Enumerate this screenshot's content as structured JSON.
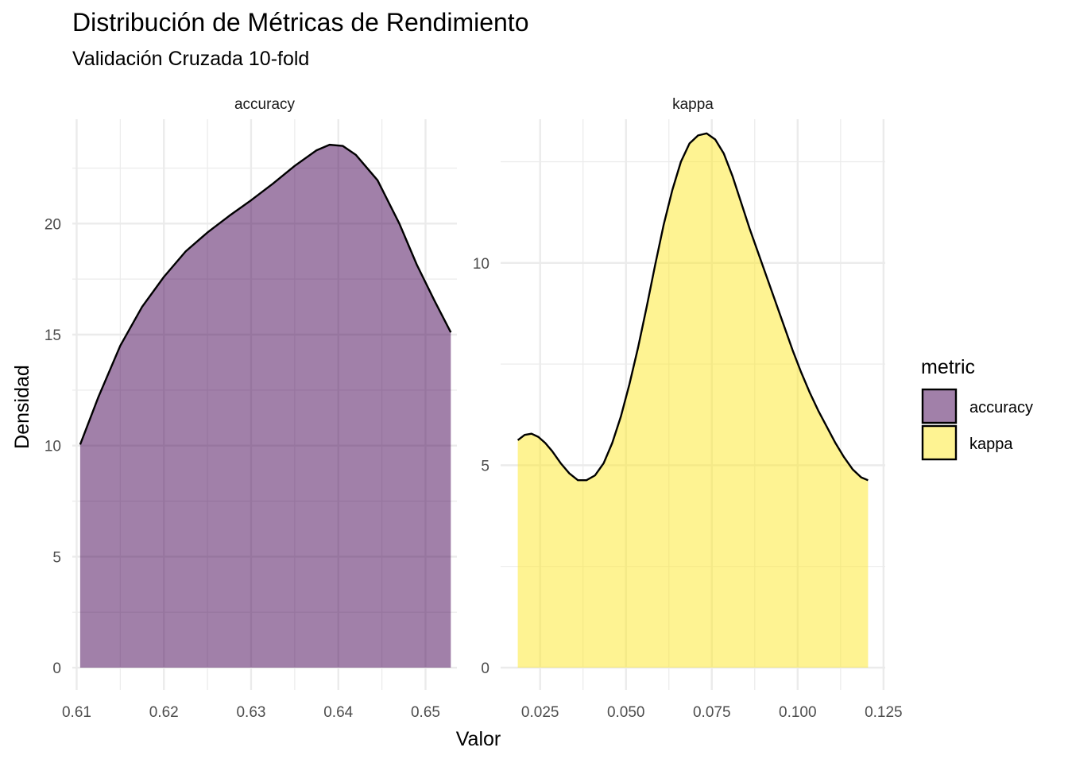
{
  "chart_data": {
    "type": "area",
    "title": "Distribución de Métricas de Rendimiento",
    "subtitle": "Validación Cruzada 10-fold",
    "xlabel": "Valor",
    "ylabel": "Densidad",
    "grid": true,
    "legend": {
      "title": "metric",
      "position": "right",
      "items": [
        {
          "name": "accuracy",
          "color": "#440154"
        },
        {
          "name": "kappa",
          "color": "#FDE725"
        }
      ]
    },
    "fill_alpha": 0.5,
    "line_color": "#000000",
    "panels": [
      {
        "strip_label": "accuracy",
        "fill_color": "#440154",
        "xlim": [
          0.6095,
          0.6536
        ],
        "ylim": [
          -1.0,
          24.7
        ],
        "x_ticks": [
          0.61,
          0.62,
          0.63,
          0.64,
          0.65
        ],
        "x_tick_labels": [
          "0.61",
          "0.62",
          "0.63",
          "0.64",
          "0.65"
        ],
        "y_ticks": [
          0,
          5,
          10,
          15,
          20
        ],
        "y_tick_labels": [
          "0",
          "5",
          "10",
          "15",
          "20"
        ],
        "x": [
          0.6104,
          0.6125,
          0.615,
          0.6175,
          0.62,
          0.6225,
          0.625,
          0.6275,
          0.63,
          0.6325,
          0.635,
          0.6375,
          0.639,
          0.6405,
          0.642,
          0.6445,
          0.647,
          0.649,
          0.651,
          0.6529
        ],
        "y": [
          10.05,
          12.2,
          14.5,
          16.25,
          17.6,
          18.75,
          19.6,
          20.35,
          21.05,
          21.8,
          22.6,
          23.3,
          23.55,
          23.5,
          23.1,
          21.95,
          20.0,
          18.15,
          16.55,
          15.1
        ]
      },
      {
        "strip_label": "kappa",
        "fill_color": "#FDE725",
        "xlim": [
          0.0135,
          0.1255
        ],
        "ylim": [
          -0.55,
          13.55
        ],
        "x_ticks": [
          0.025,
          0.05,
          0.075,
          0.1,
          0.125
        ],
        "x_tick_labels": [
          "0.025",
          "0.050",
          "0.075",
          "0.100",
          "0.125"
        ],
        "y_ticks": [
          0,
          5,
          10
        ],
        "y_tick_labels": [
          "0",
          "5",
          "10"
        ],
        "x": [
          0.0185,
          0.0205,
          0.0225,
          0.0245,
          0.0265,
          0.0285,
          0.031,
          0.0335,
          0.036,
          0.0385,
          0.041,
          0.0435,
          0.046,
          0.0485,
          0.051,
          0.0535,
          0.056,
          0.0585,
          0.061,
          0.0635,
          0.066,
          0.0685,
          0.071,
          0.0735,
          0.076,
          0.0785,
          0.081,
          0.0835,
          0.086,
          0.0885,
          0.091,
          0.0935,
          0.096,
          0.0985,
          0.101,
          0.1035,
          0.106,
          0.1085,
          0.111,
          0.1135,
          0.116,
          0.1185,
          0.1205
        ],
        "y": [
          5.62,
          5.75,
          5.78,
          5.7,
          5.55,
          5.35,
          5.05,
          4.8,
          4.63,
          4.63,
          4.75,
          5.05,
          5.55,
          6.2,
          7.0,
          7.9,
          8.9,
          9.95,
          10.95,
          11.8,
          12.5,
          12.95,
          13.15,
          13.2,
          13.05,
          12.7,
          12.15,
          11.5,
          10.85,
          10.25,
          9.65,
          9.05,
          8.45,
          7.85,
          7.3,
          6.8,
          6.35,
          5.95,
          5.55,
          5.2,
          4.9,
          4.7,
          4.63
        ]
      }
    ]
  }
}
